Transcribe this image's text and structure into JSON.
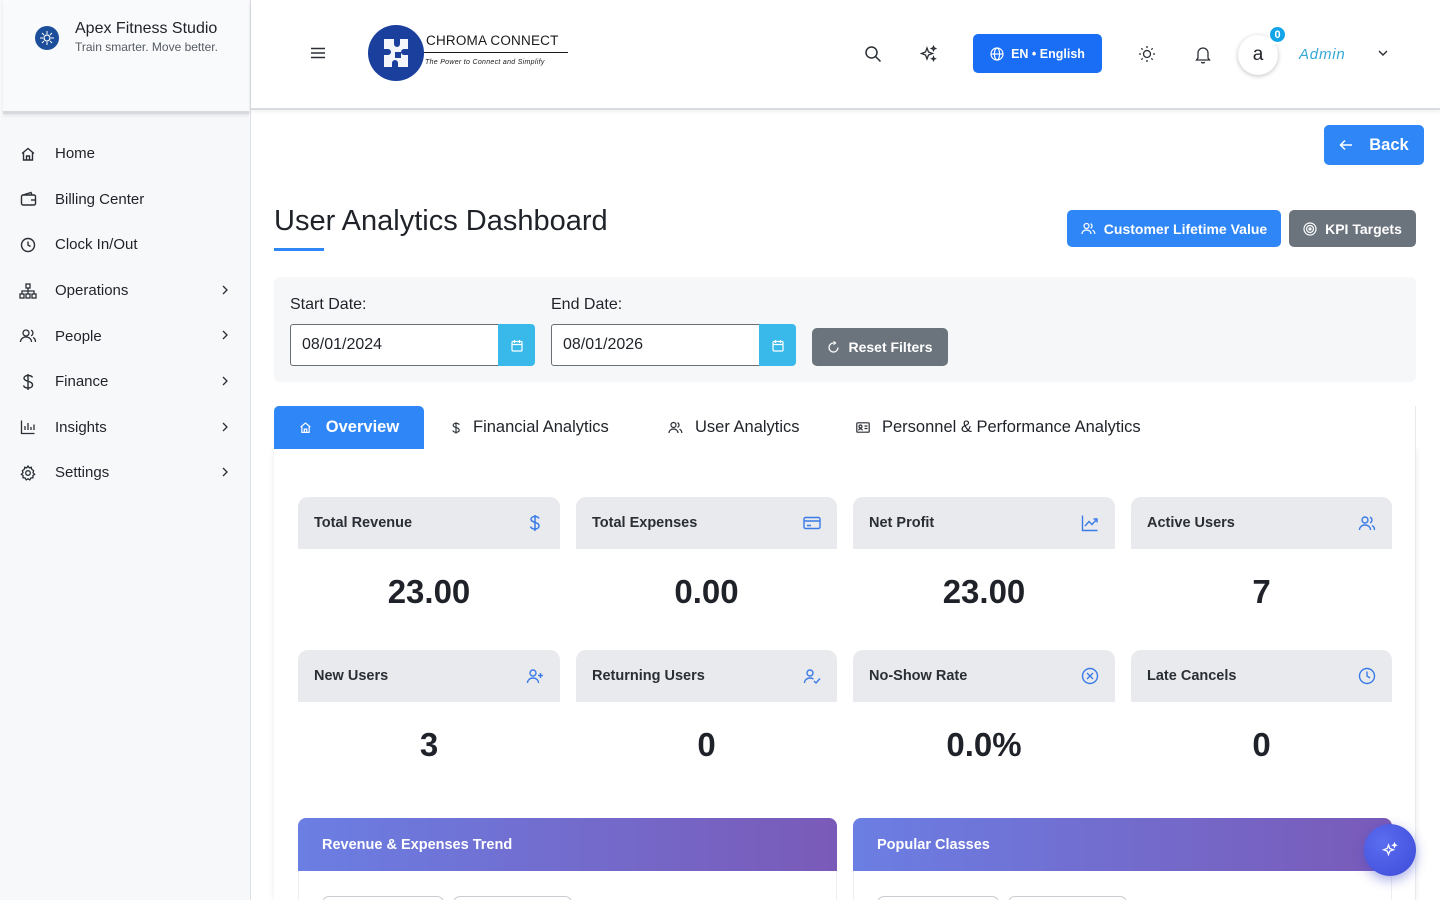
{
  "brand": {
    "name": "Apex Fitness Studio",
    "tagline": "Train smarter. Move better."
  },
  "sidebar": {
    "items": [
      {
        "label": "Home",
        "icon": "home-icon",
        "has_submenu": false
      },
      {
        "label": "Billing Center",
        "icon": "wallet-icon",
        "has_submenu": false
      },
      {
        "label": "Clock In/Out",
        "icon": "clock-icon",
        "has_submenu": false
      },
      {
        "label": "Operations",
        "icon": "org-chart-icon",
        "has_submenu": true
      },
      {
        "label": "People",
        "icon": "people-icon",
        "has_submenu": true
      },
      {
        "label": "Finance",
        "icon": "dollar-icon",
        "has_submenu": true
      },
      {
        "label": "Insights",
        "icon": "bar-chart-icon",
        "has_submenu": true
      },
      {
        "label": "Settings",
        "icon": "gear-icon",
        "has_submenu": true
      }
    ]
  },
  "header": {
    "logo_text": "CHROMA CONNECT",
    "logo_tagline": "The Power to Connect and Simplify",
    "language_label": "EN • English",
    "notification_count": "0",
    "avatar_initial": "a",
    "user_name": "Admin",
    "accent_color": "#1a6ef5"
  },
  "page": {
    "back_label": "Back",
    "title": "User Analytics Dashboard",
    "clv_label": "Customer Lifetime Value",
    "kpi_label": "KPI Targets"
  },
  "filters": {
    "start_label": "Start Date:",
    "start_value": "08/01/2024",
    "end_label": "End Date:",
    "end_value": "08/01/2026",
    "reset_label": "Reset Filters"
  },
  "tabs": [
    {
      "label": "Overview",
      "icon": "home-icon",
      "active": true
    },
    {
      "label": "Financial Analytics",
      "icon": "dollar-icon",
      "active": false
    },
    {
      "label": "User Analytics",
      "icon": "users-icon",
      "active": false
    },
    {
      "label": "Personnel & Performance Analytics",
      "icon": "id-card-icon",
      "active": false
    }
  ],
  "metrics": [
    {
      "label": "Total Revenue",
      "value": "23.00",
      "icon": "dollar-icon"
    },
    {
      "label": "Total Expenses",
      "value": "0.00",
      "icon": "credit-card-icon"
    },
    {
      "label": "Net Profit",
      "value": "23.00",
      "icon": "trend-chart-icon"
    },
    {
      "label": "Active Users",
      "value": "7",
      "icon": "users-icon"
    },
    {
      "label": "New Users",
      "value": "3",
      "icon": "user-plus-icon"
    },
    {
      "label": "Returning Users",
      "value": "0",
      "icon": "user-check-icon"
    },
    {
      "label": "No-Show Rate",
      "value": "0.0%",
      "icon": "x-circle-icon"
    },
    {
      "label": "Late Cancels",
      "value": "0",
      "icon": "clock-icon"
    }
  ],
  "charts": {
    "revenue_title": "Revenue & Expenses Trend",
    "classes_title": "Popular Classes"
  }
}
